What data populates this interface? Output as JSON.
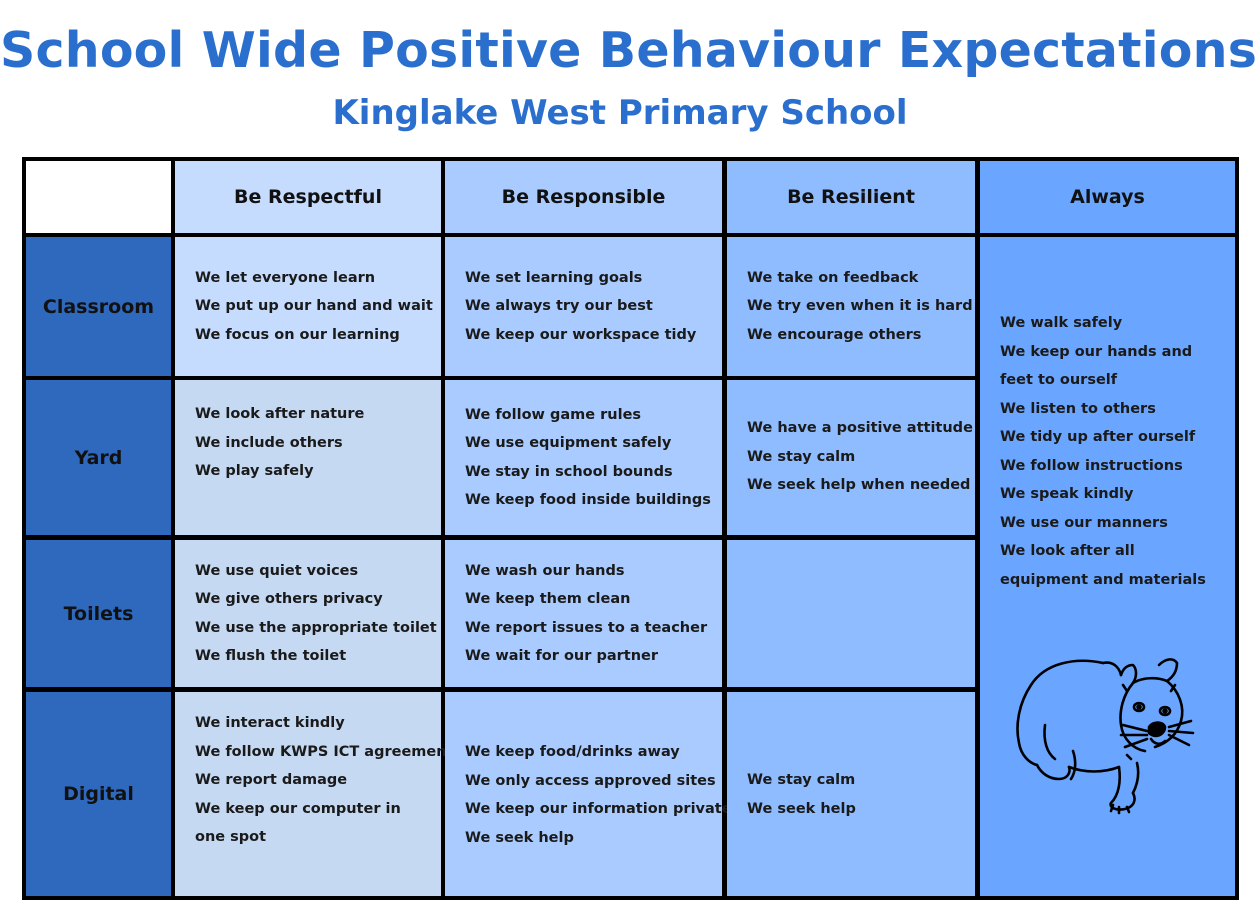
{
  "header": {
    "title": "School Wide Positive Behaviour Expectations",
    "subtitle": "Kinglake West Primary School"
  },
  "columns": [
    "Be Respectful",
    "Be Responsible",
    "Be Resilient",
    "Always"
  ],
  "rows": [
    {
      "label": "Classroom",
      "respectful": [
        "We let everyone learn",
        "We put up our hand and wait",
        "We focus on our learning"
      ],
      "responsible": [
        "We set learning goals",
        "We always try our best",
        "We keep our workspace tidy"
      ],
      "resilient": [
        "We take on feedback",
        "We try even when it is hard",
        "We encourage others"
      ]
    },
    {
      "label": "Yard",
      "respectful": [
        "We look after nature",
        "We include others",
        "We play safely"
      ],
      "responsible": [
        "We follow game rules",
        "We use equipment safely",
        "We stay in school bounds",
        "We keep food inside buildings"
      ],
      "resilient": [
        "We have a positive attitude",
        "We stay calm",
        "We seek help when needed"
      ]
    },
    {
      "label": "Toilets",
      "respectful": [
        "We use quiet voices",
        "We give others privacy",
        "We use the appropriate toilet",
        "We flush the toilet"
      ],
      "responsible": [
        "We wash our hands",
        "We keep them clean",
        "We report issues to a teacher",
        "We wait for our partner"
      ],
      "resilient": []
    },
    {
      "label": "Digital",
      "respectful": [
        "We interact kindly",
        "We follow KWPS ICT agreement",
        "We report damage",
        "We keep our computer in one spot"
      ],
      "responsible": [
        "We keep food/drinks away",
        "We only access approved sites",
        "We keep our information private",
        "We seek help"
      ],
      "resilient": [
        "We stay calm",
        "We seek help"
      ]
    }
  ],
  "always": [
    "We walk safely",
    "We keep our hands and feet to ourself",
    "We listen to others",
    "We tidy up after ourself",
    "We follow instructions",
    "We speak kindly",
    "We use our manners",
    "We look after all equipment and materials"
  ],
  "colors": {
    "title": "#2a6fcd",
    "respectful_header": "#c5dcff",
    "responsible": "#a9cbff",
    "resilient": "#8fbbff",
    "always": "#6aa6ff",
    "row_label": "#2f69be"
  },
  "illustration": "wombat-drawing"
}
